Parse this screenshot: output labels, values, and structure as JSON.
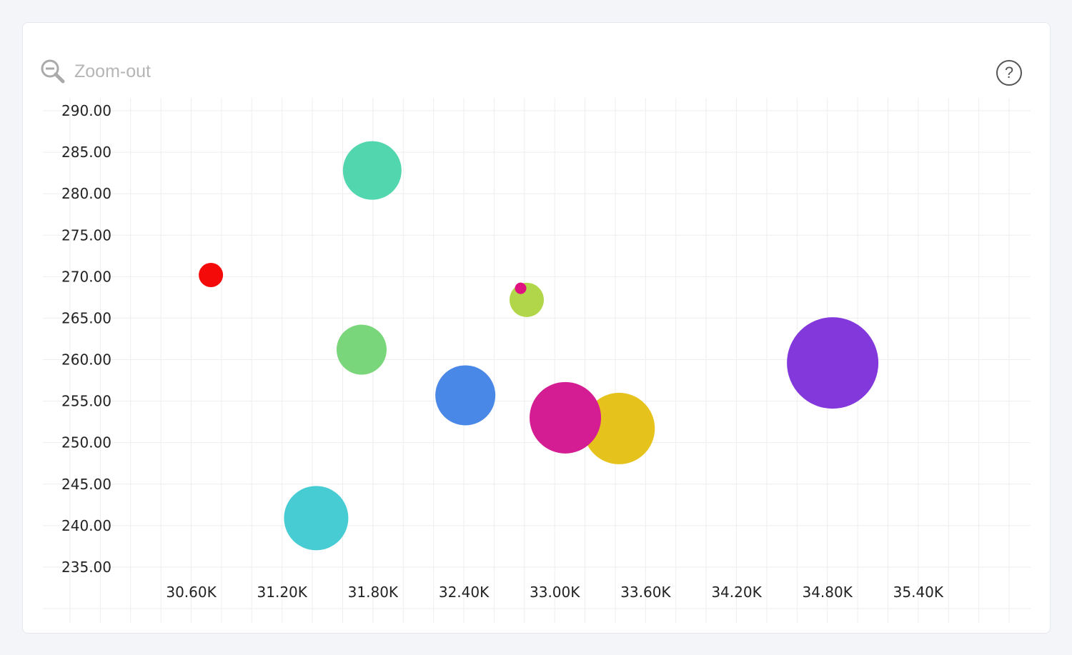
{
  "toolbar": {
    "zoom_out_label": "Zoom-out",
    "zoom_icon": "zoom-out-icon",
    "help_icon": "help-icon",
    "help_glyph": "?"
  },
  "chart_data": {
    "type": "scatter",
    "subtype": "bubble",
    "title": "",
    "xlabel": "",
    "ylabel": "",
    "xlim": [
      29800,
      36000
    ],
    "ylim": [
      230,
      290
    ],
    "grid": true,
    "x_ticks": [
      30600,
      31200,
      31800,
      32400,
      33000,
      33600,
      34200,
      34800,
      35400
    ],
    "x_tick_labels": [
      "30.60K",
      "31.20K",
      "31.80K",
      "32.40K",
      "33.00K",
      "33.60K",
      "34.20K",
      "34.80K",
      "35.40K"
    ],
    "y_ticks": [
      290,
      285,
      280,
      275,
      270,
      265,
      260,
      255,
      250,
      245,
      240,
      235
    ],
    "y_tick_labels": [
      "290.00",
      "285.00",
      "280.00",
      "275.00",
      "270.00",
      "265.00",
      "260.00",
      "255.00",
      "250.00",
      "245.00",
      "240.00",
      "235.00"
    ],
    "points": [
      {
        "x": 30730,
        "y": 270.2,
        "size": 17,
        "color": "#f50a0a"
      },
      {
        "x": 31795,
        "y": 282.8,
        "size": 41,
        "color": "#52d6ad"
      },
      {
        "x": 31725,
        "y": 261.2,
        "size": 35,
        "color": "#7ad67a"
      },
      {
        "x": 31425,
        "y": 240.9,
        "size": 45,
        "color": "#48ccd4"
      },
      {
        "x": 32410,
        "y": 255.7,
        "size": 42,
        "color": "#4a88e8"
      },
      {
        "x": 32815,
        "y": 267.2,
        "size": 24,
        "color": "#b1d64a"
      },
      {
        "x": 32775,
        "y": 268.6,
        "size": 8,
        "color": "#e0127f"
      },
      {
        "x": 33425,
        "y": 251.7,
        "size": 50,
        "color": "#e6c31c"
      },
      {
        "x": 33070,
        "y": 253.0,
        "size": 50,
        "color": "#d41c93"
      },
      {
        "x": 34835,
        "y": 259.6,
        "size": 64,
        "color": "#8338dc"
      }
    ]
  }
}
